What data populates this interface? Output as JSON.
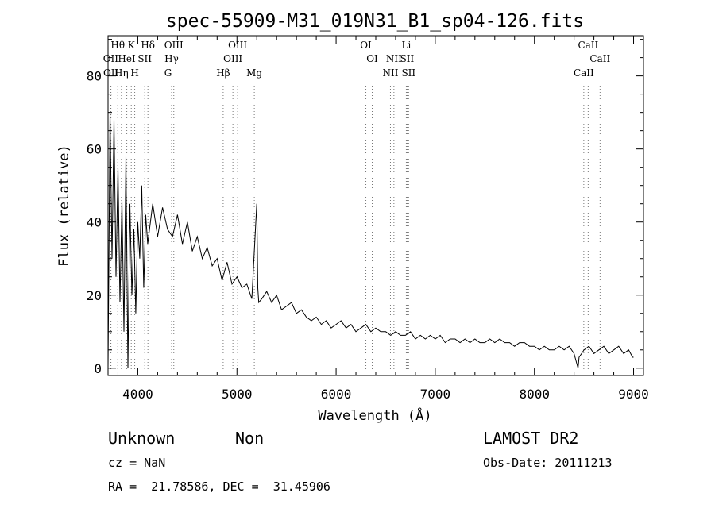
{
  "chart_data": {
    "type": "line",
    "title": "spec-55909-M31_019N31_B1_sp04-126.fits",
    "xlabel": "Wavelength (Å)",
    "ylabel": "Flux (relative)",
    "xlim": [
      3700,
      9100
    ],
    "ylim": [
      -2,
      91
    ],
    "x_ticks": [
      4000,
      5000,
      6000,
      7000,
      8000,
      9000
    ],
    "y_ticks": [
      0,
      20,
      40,
      60,
      80
    ],
    "x_tick_labels": [
      "4000",
      "5000",
      "6000",
      "7000",
      "8000",
      "9000"
    ],
    "y_tick_labels": [
      "0",
      "20",
      "40",
      "60",
      "80"
    ],
    "grid": false,
    "series": [
      {
        "x": [
          3700,
          3720,
          3740,
          3760,
          3780,
          3800,
          3820,
          3840,
          3860,
          3880,
          3900,
          3920,
          3940,
          3960,
          3980,
          4000,
          4020,
          4040,
          4060,
          4080,
          4100,
          4150,
          4200,
          4250,
          4300,
          4350,
          4400,
          4450,
          4500,
          4550,
          4600,
          4650,
          4700,
          4750,
          4800,
          4850,
          4900,
          4950,
          5000,
          5050,
          5100,
          5150,
          5200,
          5210,
          5220,
          5250,
          5300,
          5350,
          5400,
          5450,
          5500,
          5550,
          5600,
          5650,
          5700,
          5750,
          5800,
          5850,
          5900,
          5950,
          6000,
          6050,
          6100,
          6150,
          6200,
          6250,
          6300,
          6350,
          6400,
          6450,
          6500,
          6550,
          6600,
          6650,
          6700,
          6750,
          6800,
          6850,
          6900,
          6950,
          7000,
          7050,
          7100,
          7150,
          7200,
          7250,
          7300,
          7350,
          7400,
          7450,
          7500,
          7550,
          7600,
          7650,
          7700,
          7750,
          7800,
          7850,
          7900,
          7950,
          8000,
          8050,
          8100,
          8150,
          8200,
          8250,
          8300,
          8350,
          8400,
          8440,
          8450,
          8500,
          8550,
          8600,
          8650,
          8700,
          8750,
          8800,
          8850,
          8900,
          8950,
          8990,
          9000
        ],
        "y": [
          0,
          70,
          30,
          68,
          25,
          55,
          18,
          46,
          10,
          58,
          0,
          45,
          20,
          38,
          15,
          40,
          30,
          50,
          22,
          42,
          34,
          45,
          36,
          44,
          38,
          36,
          42,
          34,
          40,
          32,
          36,
          30,
          33,
          28,
          30,
          24,
          29,
          23,
          25,
          22,
          23,
          19,
          45,
          22,
          18,
          19,
          21,
          18,
          20,
          16,
          17,
          18,
          15,
          16,
          14,
          13,
          14,
          12,
          13,
          11,
          12,
          13,
          11,
          12,
          10,
          11,
          12,
          10,
          11,
          10,
          10,
          9,
          10,
          9,
          9,
          10,
          8,
          9,
          8,
          9,
          8,
          9,
          7,
          8,
          8,
          7,
          8,
          7,
          8,
          7,
          7,
          8,
          7,
          8,
          7,
          7,
          6,
          7,
          7,
          6,
          6,
          5,
          6,
          5,
          5,
          6,
          5,
          6,
          4,
          0,
          3,
          5,
          6,
          4,
          5,
          6,
          4,
          5,
          6,
          4,
          5,
          3,
          3
        ]
      }
    ],
    "lines": [
      {
        "label": "Hθ",
        "x": 3798,
        "row": 0
      },
      {
        "label": "K",
        "x": 3934,
        "row": 0
      },
      {
        "label": "Hδ",
        "x": 4102,
        "row": 0
      },
      {
        "label": "OIII",
        "x": 4363,
        "row": 0
      },
      {
        "label": "OIII",
        "x": 5007,
        "row": 0
      },
      {
        "label": "OI",
        "x": 6300,
        "row": 0
      },
      {
        "label": "Li",
        "x": 6708,
        "row": 0
      },
      {
        "label": "CaII",
        "x": 8542,
        "row": 0
      },
      {
        "label": "OII",
        "x": 3727,
        "row": 1
      },
      {
        "label": "HeI",
        "x": 3889,
        "row": 1
      },
      {
        "label": "SII",
        "x": 4070,
        "row": 1
      },
      {
        "label": "Hγ",
        "x": 4341,
        "row": 1
      },
      {
        "label": "OIII",
        "x": 4959,
        "row": 1
      },
      {
        "label": "OI",
        "x": 6364,
        "row": 1
      },
      {
        "label": "NII",
        "x": 6583,
        "row": 1
      },
      {
        "label": "SII",
        "x": 6716,
        "row": 1
      },
      {
        "label": "CaII",
        "x": 8662,
        "row": 1
      },
      {
        "label": "OII",
        "x": 3729,
        "row": 2
      },
      {
        "label": "Hη",
        "x": 3835,
        "row": 2
      },
      {
        "label": "H",
        "x": 3969,
        "row": 2
      },
      {
        "label": "G",
        "x": 4305,
        "row": 2
      },
      {
        "label": "Hβ",
        "x": 4861,
        "row": 2
      },
      {
        "label": "Mg",
        "x": 5175,
        "row": 2
      },
      {
        "label": "NII",
        "x": 6548,
        "row": 2
      },
      {
        "label": "SII",
        "x": 6731,
        "row": 2
      },
      {
        "label": "CaII",
        "x": 8498,
        "row": 2
      }
    ]
  },
  "info": {
    "class": "Unknown",
    "subclass": "Non",
    "survey": "LAMOST DR2",
    "cz": "cz = NaN",
    "obs_date": "Obs-Date: 20111213",
    "radec": "RA =  21.78586, DEC =  31.45906"
  }
}
